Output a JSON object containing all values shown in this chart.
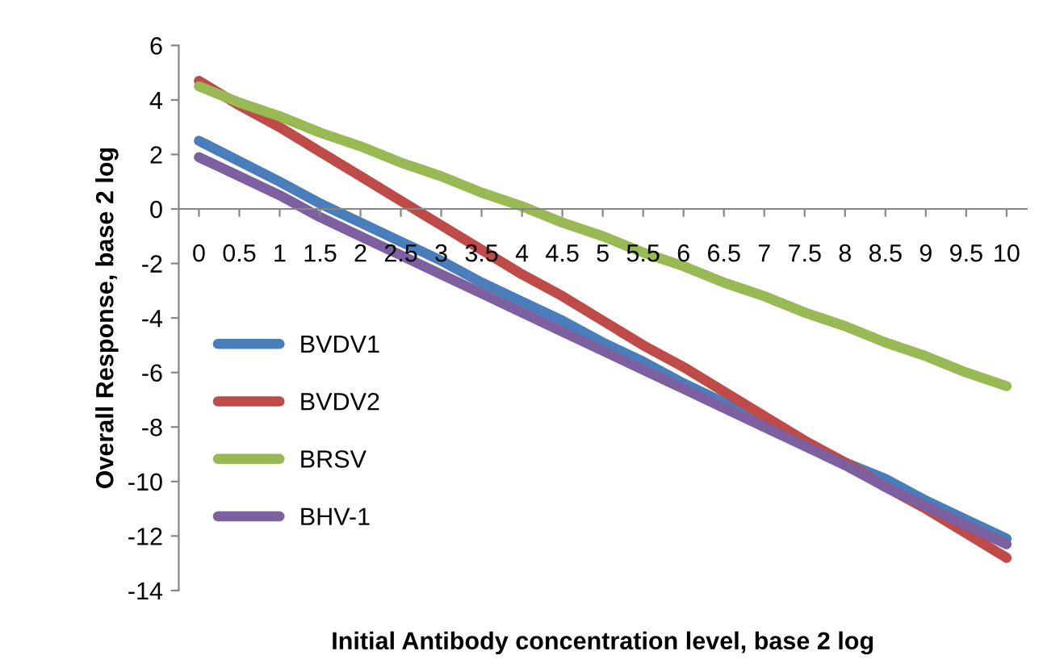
{
  "chart_data": {
    "type": "line",
    "xlabel": "Initial Antibody concentration level, base 2 log",
    "ylabel": "Overall Response, base 2 log",
    "categories": [
      "0",
      "0.5",
      "1",
      "1.5",
      "2",
      "2.5",
      "3",
      "3.5",
      "4",
      "4.5",
      "5",
      "5.5",
      "6",
      "6.5",
      "7",
      "7.5",
      "8",
      "8.5",
      "9",
      "9.5",
      "10"
    ],
    "series": [
      {
        "name": "BVDV1",
        "color": "#4a7ebb",
        "values": [
          2.5,
          1.75,
          1.0,
          0.2,
          -0.5,
          -1.2,
          -1.9,
          -2.7,
          -3.4,
          -4.1,
          -4.9,
          -5.6,
          -6.4,
          -7.1,
          -7.8,
          -8.6,
          -9.3,
          -9.9,
          -10.7,
          -11.4,
          -12.1
        ]
      },
      {
        "name": "BVDV2",
        "color": "#be4b48",
        "values": [
          4.7,
          3.8,
          3.0,
          2.1,
          1.2,
          0.3,
          -0.6,
          -1.5,
          -2.4,
          -3.2,
          -4.1,
          -5.0,
          -5.8,
          -6.7,
          -7.6,
          -8.5,
          -9.3,
          -10.2,
          -11.0,
          -11.9,
          -12.8
        ]
      },
      {
        "name": "BRSV",
        "color": "#98b954",
        "values": [
          4.5,
          3.9,
          3.4,
          2.8,
          2.3,
          1.7,
          1.2,
          0.6,
          0.1,
          -0.5,
          -1.0,
          -1.6,
          -2.1,
          -2.7,
          -3.2,
          -3.8,
          -4.3,
          -4.9,
          -5.4,
          -6.0,
          -6.5
        ]
      },
      {
        "name": "BHV-1",
        "color": "#7d60a0",
        "values": [
          1.9,
          1.2,
          0.5,
          -0.3,
          -1.0,
          -1.7,
          -2.4,
          -3.1,
          -3.8,
          -4.5,
          -5.2,
          -5.9,
          -6.6,
          -7.3,
          -8.0,
          -8.7,
          -9.4,
          -10.2,
          -10.9,
          -11.6,
          -12.3
        ]
      }
    ],
    "ylim": [
      -14,
      6
    ],
    "yticks": [
      -14,
      -12,
      -10,
      -8,
      -6,
      -4,
      -2,
      0,
      2,
      4,
      6
    ],
    "grid": false,
    "legend": "left",
    "marker": "none",
    "line_style": "solid"
  }
}
